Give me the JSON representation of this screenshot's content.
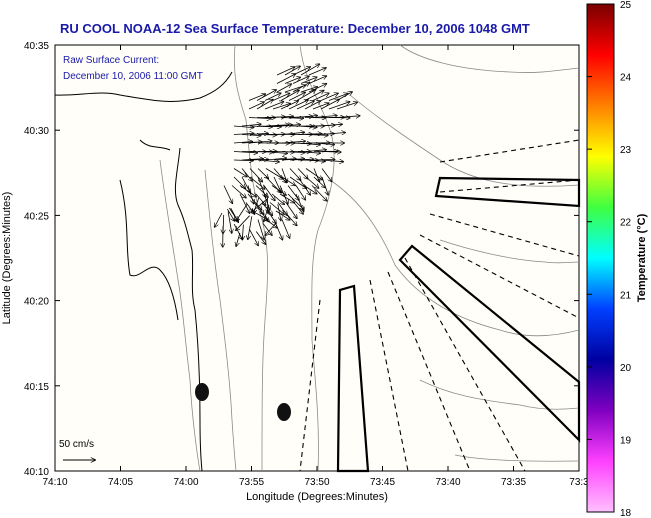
{
  "title": "RU COOL  NOAA-12  Sea Surface Temperature:  December 10, 2006 1048 GMT",
  "current_label": [
    "Raw Surface Current:",
    "December 10, 2006 11:00 GMT"
  ],
  "scale_label": "50 cm/s",
  "xaxis": {
    "label": "Longitude (Degrees:Minutes)",
    "ticks": [
      "74:10",
      "74:05",
      "74:00",
      "73:55",
      "73:50",
      "73:45",
      "73:40",
      "73:35",
      "73:3"
    ]
  },
  "yaxis": {
    "label": "Latitude (Degrees:Minutes)",
    "ticks": [
      "40:35",
      "40:30",
      "40:25",
      "40:20",
      "40:15",
      "40:10"
    ]
  },
  "colorbar": {
    "label": "Temperature (°C)",
    "ticks": [
      "25",
      "24",
      "23",
      "22",
      "21",
      "20",
      "19",
      "18"
    ],
    "stops": [
      "#7a0000",
      "#ff0000",
      "#ff8000",
      "#ffff00",
      "#40ff40",
      "#00ffff",
      "#0040ff",
      "#0000a0",
      "#8000c0",
      "#ff40ff",
      "#ffc0ff"
    ]
  },
  "colors": {
    "title": "#1a1aa8",
    "background": "#fefefe",
    "plot_bg": "#fffef9"
  }
}
